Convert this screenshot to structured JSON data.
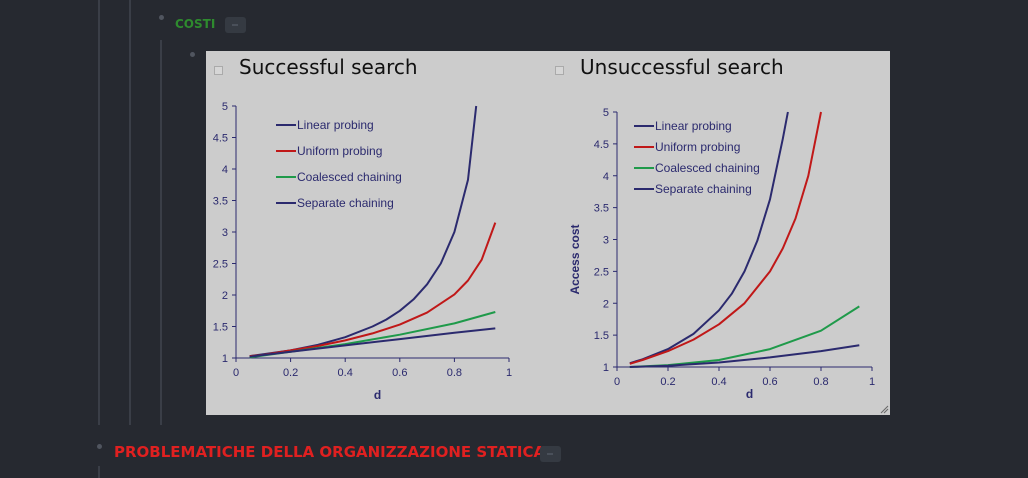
{
  "outline": {
    "section_costi": {
      "label": "COSTI",
      "color": "#2e8b2e"
    },
    "section_problematiche": {
      "label": "PROBLEMATICHE DELLA ORGANIZZAZIONE STATICA",
      "color": "#e02020"
    }
  },
  "colors": {
    "navy": "#2b2a6e",
    "red": "#c01818",
    "green": "#1f9a4a",
    "axis": "#2b2a6e"
  },
  "chart_data": [
    {
      "type": "line",
      "title": "Successful search",
      "xlabel": "d",
      "ylabel": "",
      "xlim": [
        0,
        1
      ],
      "ylim": [
        1,
        5
      ],
      "xticks": [
        "0",
        "0.2",
        "0.4",
        "0.6",
        "0.8",
        "1"
      ],
      "yticks": [
        "1",
        "1.5",
        "2",
        "2.5",
        "3",
        "3.5",
        "4",
        "4.5",
        "5"
      ],
      "legend_position": "top-left",
      "grid": false,
      "series": [
        {
          "name": "Linear probing",
          "color": "#2b2a6e",
          "x": [
            0.05,
            0.1,
            0.2,
            0.3,
            0.4,
            0.5,
            0.55,
            0.6,
            0.65,
            0.7,
            0.75,
            0.8,
            0.85,
            0.88
          ],
          "y": [
            1.03,
            1.06,
            1.12,
            1.21,
            1.33,
            1.5,
            1.61,
            1.75,
            1.93,
            2.17,
            2.5,
            3.0,
            3.83,
            5.0
          ]
        },
        {
          "name": "Uniform probing",
          "color": "#c01818",
          "x": [
            0.05,
            0.1,
            0.2,
            0.3,
            0.4,
            0.5,
            0.6,
            0.7,
            0.8,
            0.85,
            0.9,
            0.95
          ],
          "y": [
            1.03,
            1.05,
            1.12,
            1.19,
            1.28,
            1.39,
            1.53,
            1.72,
            2.01,
            2.23,
            2.56,
            3.15
          ]
        },
        {
          "name": "Coalesced chaining",
          "color": "#1f9a4a",
          "x": [
            0.05,
            0.2,
            0.4,
            0.6,
            0.8,
            0.95
          ],
          "y": [
            1.01,
            1.1,
            1.22,
            1.37,
            1.55,
            1.73
          ]
        },
        {
          "name": "Separate chaining",
          "color": "#2b2a6e",
          "x": [
            0.05,
            0.2,
            0.4,
            0.6,
            0.8,
            0.95
          ],
          "y": [
            1.02,
            1.1,
            1.2,
            1.3,
            1.4,
            1.47
          ]
        }
      ]
    },
    {
      "type": "line",
      "title": "Unsuccessful search",
      "xlabel": "d",
      "ylabel": "Access cost",
      "xlim": [
        0,
        1
      ],
      "ylim": [
        1,
        5
      ],
      "xticks": [
        "0",
        "0.2",
        "0.4",
        "0.6",
        "0.8",
        "1"
      ],
      "yticks": [
        "1",
        "1.5",
        "2",
        "2.5",
        "3",
        "3.5",
        "4",
        "4.5",
        "5"
      ],
      "legend_position": "top-left",
      "grid": false,
      "series": [
        {
          "name": "Linear probing",
          "color": "#2b2a6e",
          "x": [
            0.05,
            0.1,
            0.2,
            0.3,
            0.4,
            0.45,
            0.5,
            0.55,
            0.6,
            0.65,
            0.67
          ],
          "y": [
            1.06,
            1.12,
            1.28,
            1.52,
            1.89,
            2.15,
            2.5,
            2.98,
            3.63,
            4.58,
            5.0
          ]
        },
        {
          "name": "Uniform probing",
          "color": "#c01818",
          "x": [
            0.05,
            0.1,
            0.2,
            0.3,
            0.4,
            0.5,
            0.6,
            0.65,
            0.7,
            0.75,
            0.8
          ],
          "y": [
            1.05,
            1.11,
            1.25,
            1.43,
            1.67,
            2.0,
            2.5,
            2.86,
            3.33,
            4.0,
            5.0
          ]
        },
        {
          "name": "Coalesced chaining",
          "color": "#1f9a4a",
          "x": [
            0.05,
            0.2,
            0.4,
            0.6,
            0.8,
            0.95
          ],
          "y": [
            1.0,
            1.03,
            1.11,
            1.28,
            1.57,
            1.95
          ]
        },
        {
          "name": "Separate chaining",
          "color": "#2b2a6e",
          "x": [
            0.05,
            0.2,
            0.4,
            0.6,
            0.8,
            0.95
          ],
          "y": [
            1.0,
            1.02,
            1.07,
            1.15,
            1.25,
            1.34
          ]
        }
      ]
    }
  ]
}
